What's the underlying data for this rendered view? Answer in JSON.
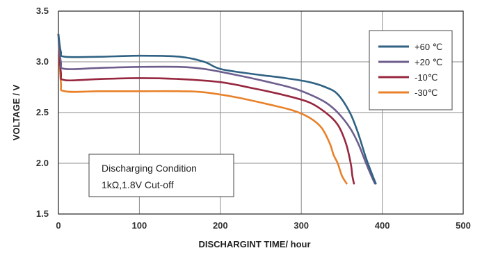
{
  "chart_data": {
    "type": "line",
    "xlabel": "DISCHARGINT TIME/ hour",
    "ylabel": "VOLTAGE / V",
    "xlim": [
      0,
      500
    ],
    "ylim": [
      1.5,
      3.5
    ],
    "xticks": [
      "0",
      "100",
      "200",
      "300",
      "400",
      "500"
    ],
    "yticks": [
      "1.5",
      "2.0",
      "2.5",
      "3.0",
      "3.5"
    ],
    "grid": true,
    "legend_position": "top-right",
    "annotation": [
      "Discharging Condition",
      "1kΩ,1.8V Cut-off"
    ],
    "series": [
      {
        "name": "+60 ℃",
        "color": "#2f6283",
        "points": [
          [
            0,
            3.27
          ],
          [
            3,
            3.1
          ],
          [
            8,
            3.05
          ],
          [
            50,
            3.05
          ],
          [
            100,
            3.06
          ],
          [
            150,
            3.05
          ],
          [
            180,
            3.0
          ],
          [
            200,
            2.93
          ],
          [
            240,
            2.88
          ],
          [
            280,
            2.84
          ],
          [
            310,
            2.8
          ],
          [
            330,
            2.75
          ],
          [
            345,
            2.68
          ],
          [
            360,
            2.5
          ],
          [
            370,
            2.3
          ],
          [
            380,
            2.05
          ],
          [
            388,
            1.88
          ],
          [
            392,
            1.8
          ]
        ]
      },
      {
        "name": "+20 ℃",
        "color": "#6e5e8e",
        "points": [
          [
            0,
            3.27
          ],
          [
            3,
            3.0
          ],
          [
            8,
            2.93
          ],
          [
            50,
            2.94
          ],
          [
            100,
            2.95
          ],
          [
            150,
            2.95
          ],
          [
            180,
            2.93
          ],
          [
            220,
            2.87
          ],
          [
            260,
            2.8
          ],
          [
            290,
            2.74
          ],
          [
            310,
            2.68
          ],
          [
            330,
            2.6
          ],
          [
            345,
            2.5
          ],
          [
            360,
            2.35
          ],
          [
            370,
            2.2
          ],
          [
            380,
            2.0
          ],
          [
            388,
            1.85
          ],
          [
            391,
            1.8
          ]
        ]
      },
      {
        "name": "-10℃",
        "color": "#97273f",
        "points": [
          [
            0,
            3.27
          ],
          [
            3,
            2.9
          ],
          [
            8,
            2.82
          ],
          [
            50,
            2.83
          ],
          [
            100,
            2.84
          ],
          [
            150,
            2.83
          ],
          [
            200,
            2.8
          ],
          [
            240,
            2.74
          ],
          [
            280,
            2.67
          ],
          [
            310,
            2.6
          ],
          [
            330,
            2.5
          ],
          [
            345,
            2.38
          ],
          [
            355,
            2.2
          ],
          [
            361,
            2.0
          ],
          [
            363,
            1.88
          ],
          [
            365,
            1.8
          ]
        ]
      },
      {
        "name": "-30℃",
        "color": "#e8812a",
        "points": [
          [
            0,
            3.27
          ],
          [
            3,
            2.8
          ],
          [
            8,
            2.71
          ],
          [
            50,
            2.71
          ],
          [
            100,
            2.71
          ],
          [
            150,
            2.71
          ],
          [
            180,
            2.7
          ],
          [
            220,
            2.65
          ],
          [
            260,
            2.58
          ],
          [
            290,
            2.52
          ],
          [
            310,
            2.45
          ],
          [
            325,
            2.35
          ],
          [
            335,
            2.2
          ],
          [
            340,
            2.08
          ],
          [
            345,
            2.0
          ],
          [
            350,
            1.88
          ],
          [
            356,
            1.8
          ]
        ]
      }
    ]
  }
}
